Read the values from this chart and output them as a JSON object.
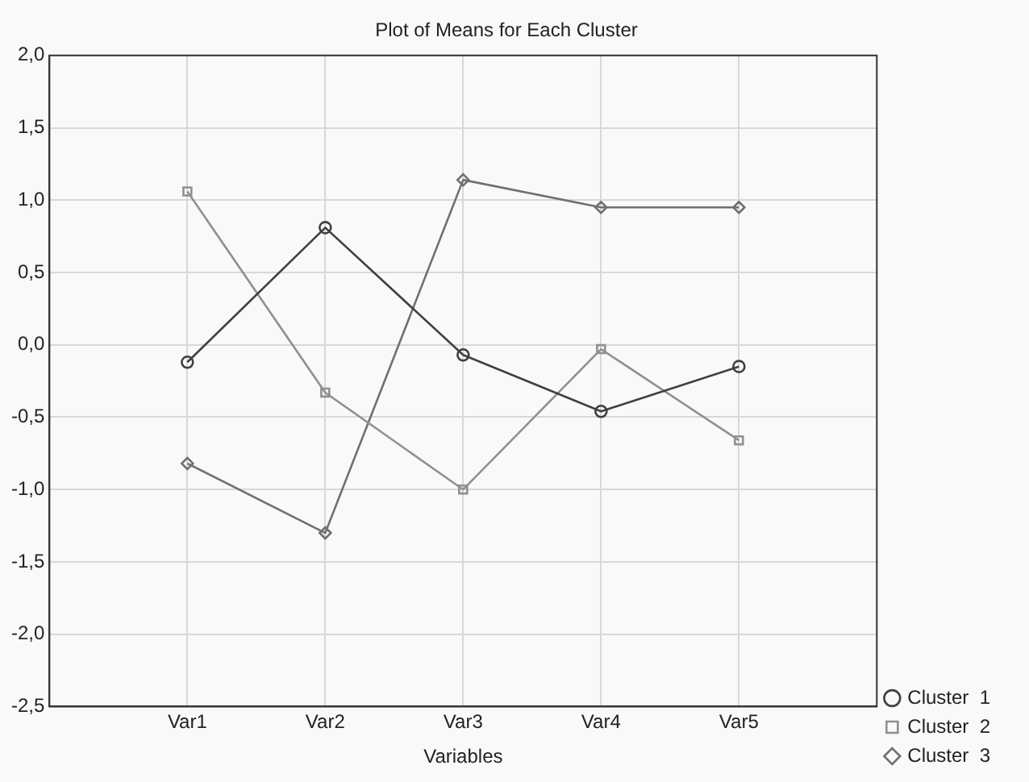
{
  "chart_data": {
    "type": "line",
    "title": "Plot of Means for Each Cluster",
    "xlabel": "Variables",
    "categories": [
      "Var1",
      "Var2",
      "Var3",
      "Var4",
      "Var5"
    ],
    "series": [
      {
        "name": "Cluster  1",
        "color": "#404040",
        "marker": "circle",
        "values": [
          -0.12,
          0.81,
          -0.07,
          -0.46,
          -0.15
        ]
      },
      {
        "name": "Cluster  2",
        "color": "#909090",
        "marker": "square",
        "values": [
          1.06,
          -0.33,
          -1.0,
          -0.03,
          -0.66
        ]
      },
      {
        "name": "Cluster  3",
        "color": "#707070",
        "marker": "diamond",
        "values": [
          -0.82,
          -1.3,
          1.14,
          0.95,
          0.95
        ]
      }
    ],
    "ylim": [
      -2.5,
      2.0
    ],
    "yticks": [
      {
        "value": -2.5,
        "label": "-2,5"
      },
      {
        "value": -2.0,
        "label": "-2,0"
      },
      {
        "value": -1.5,
        "label": "-1,5"
      },
      {
        "value": -1.0,
        "label": "-1,0"
      },
      {
        "value": -0.5,
        "label": "-0,5"
      },
      {
        "value": 0,
        "label": "0,0"
      },
      {
        "value": 0.5,
        "label": "0,5"
      },
      {
        "value": 1.0,
        "label": "1,0"
      },
      {
        "value": 1.5,
        "label": "1,5"
      },
      {
        "value": 2.0,
        "label": "2,0"
      }
    ],
    "grid": true,
    "legend": "bottom right",
    "line_style": "solid"
  }
}
